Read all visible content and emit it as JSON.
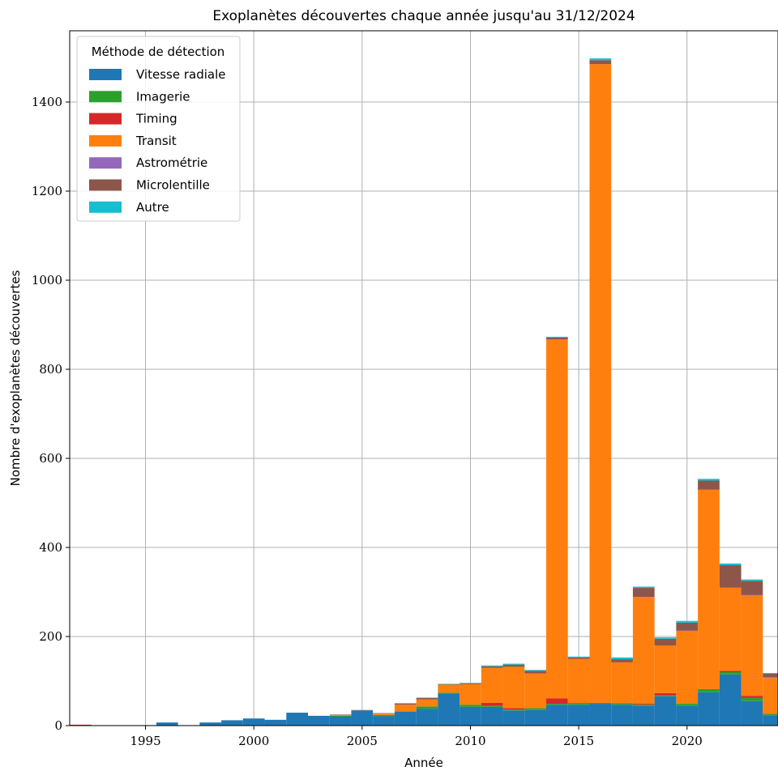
{
  "chart_data": {
    "type": "bar",
    "stacked": true,
    "title": "Exoplanètes découvertes chaque année jusqu'au 31/12/2024",
    "xlabel": "Année",
    "ylabel": "Nombre d'exoplanètes découvertes",
    "xlim": [
      1991.5,
      2024.2
    ],
    "ylim": [
      0,
      1560
    ],
    "xticks": [
      1995,
      2000,
      2005,
      2010,
      2015,
      2020
    ],
    "yticks": [
      0,
      200,
      400,
      600,
      800,
      1000,
      1200,
      1400
    ],
    "grid": true,
    "legend": {
      "title": "Méthode de détection",
      "placement": "top-left"
    },
    "x": [
      1992,
      1993,
      1994,
      1995,
      1996,
      1997,
      1998,
      1999,
      2000,
      2001,
      2002,
      2003,
      2004,
      2005,
      2006,
      2007,
      2008,
      2009,
      2010,
      2011,
      2012,
      2013,
      2014,
      2015,
      2016,
      2017,
      2018,
      2019,
      2020,
      2021,
      2022,
      2023,
      2024
    ],
    "series": [
      {
        "name": "Vitesse radiale",
        "color": "#1f77b4",
        "values": [
          0,
          1,
          0,
          1,
          7,
          1,
          7,
          12,
          16,
          13,
          29,
          22,
          20,
          34,
          21,
          31,
          38,
          72,
          42,
          42,
          34,
          35,
          47,
          47,
          49,
          47,
          45,
          66,
          45,
          75,
          115,
          55,
          23
        ]
      },
      {
        "name": "Imagerie",
        "color": "#2ca02c",
        "values": [
          0,
          0,
          0,
          0,
          0,
          0,
          0,
          0,
          0,
          0,
          0,
          0,
          2,
          0,
          3,
          1,
          5,
          2,
          5,
          2,
          2,
          4,
          2,
          2,
          2,
          3,
          2,
          2,
          4,
          7,
          5,
          7,
          3
        ]
      },
      {
        "name": "Timing",
        "color": "#d62728",
        "values": [
          2,
          0,
          1,
          0,
          0,
          0,
          0,
          0,
          0,
          0,
          0,
          0,
          0,
          0,
          0,
          0,
          0,
          0,
          0,
          7,
          3,
          0,
          12,
          1,
          0,
          0,
          2,
          5,
          0,
          0,
          3,
          5,
          1
        ]
      },
      {
        "name": "Transit",
        "color": "#ff7f0e",
        "values": [
          0,
          0,
          0,
          0,
          0,
          0,
          0,
          0,
          0,
          0,
          0,
          0,
          2,
          0,
          3,
          15,
          16,
          18,
          46,
          79,
          93,
          78,
          806,
          100,
          1434,
          92,
          240,
          107,
          163,
          448,
          187,
          225,
          80
        ]
      },
      {
        "name": "Astrométrie",
        "color": "#9467bd",
        "values": [
          0,
          0,
          0,
          0,
          0,
          0,
          0,
          0,
          0,
          0,
          0,
          0,
          0,
          0,
          0,
          0,
          0,
          0,
          0,
          0,
          0,
          0,
          0,
          0,
          0,
          0,
          0,
          0,
          1,
          0,
          0,
          1,
          2
        ]
      },
      {
        "name": "Microlentille",
        "color": "#8c564b",
        "values": [
          0,
          0,
          0,
          0,
          0,
          0,
          0,
          0,
          0,
          0,
          0,
          0,
          1,
          1,
          1,
          3,
          3,
          1,
          2,
          3,
          5,
          6,
          4,
          3,
          9,
          7,
          20,
          15,
          18,
          20,
          50,
          32,
          8
        ]
      },
      {
        "name": "Autre",
        "color": "#17becf",
        "values": [
          0,
          0,
          0,
          0,
          0,
          0,
          0,
          0,
          0,
          0,
          0,
          0,
          0,
          0,
          0,
          0,
          1,
          1,
          1,
          2,
          2,
          2,
          2,
          2,
          4,
          4,
          3,
          3,
          4,
          4,
          4,
          3,
          1
        ]
      }
    ]
  }
}
